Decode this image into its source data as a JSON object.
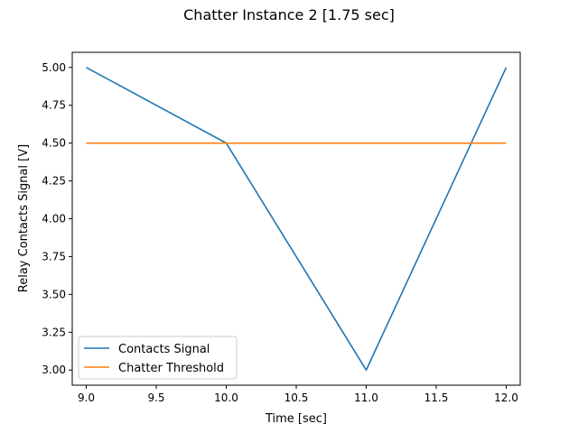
{
  "chart_data": {
    "type": "line",
    "title": "Chatter Instance 2  [1.75 sec]",
    "xlabel": "Time [sec]",
    "ylabel": "Relay Contacts Signal [V]",
    "xlim": [
      8.9,
      12.1
    ],
    "ylim": [
      2.9,
      5.1
    ],
    "xticks": [
      9.0,
      9.5,
      10.0,
      10.5,
      11.0,
      11.5,
      12.0
    ],
    "xtick_labels": [
      "9.0",
      "9.5",
      "10.0",
      "10.5",
      "11.0",
      "11.5",
      "12.0"
    ],
    "yticks": [
      3.0,
      3.25,
      3.5,
      3.75,
      4.0,
      4.25,
      4.5,
      4.75,
      5.0
    ],
    "ytick_labels": [
      "3.00",
      "3.25",
      "3.50",
      "3.75",
      "4.00",
      "4.25",
      "4.50",
      "4.75",
      "5.00"
    ],
    "grid": false,
    "legend_position": "lower-left",
    "series": [
      {
        "name": "Contacts Signal",
        "color": "#1f77b4",
        "x": [
          9.0,
          10.0,
          11.0,
          12.0
        ],
        "y": [
          5.0,
          4.5,
          3.0,
          5.0
        ]
      },
      {
        "name": "Chatter Threshold",
        "color": "#ff7f0e",
        "x": [
          9.0,
          12.0
        ],
        "y": [
          4.5,
          4.5
        ]
      }
    ]
  }
}
